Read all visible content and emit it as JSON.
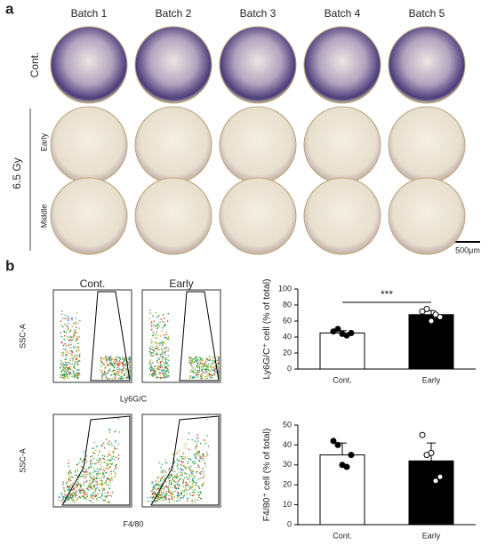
{
  "figure": {
    "panel_a": {
      "label": "a",
      "batches": [
        "Batch 1",
        "Batch 2",
        "Batch 3",
        "Batch 4",
        "Batch 5"
      ],
      "group": "6.5 Gy",
      "rows": [
        "Cont.",
        "Early",
        "Middle"
      ],
      "scale_bar": "500μm"
    },
    "panel_b": {
      "label": "b",
      "flow_titles": [
        "Cont.",
        "Early"
      ],
      "flow_y_label": "SSC-A",
      "flow_x_labels": [
        "Ly6G/C",
        "F4/80"
      ]
    }
  },
  "chart_data": [
    {
      "type": "bar",
      "y_label": "Ly6G/C⁺ cell (% of total)",
      "categories": [
        "Cont.",
        "Early"
      ],
      "values": [
        45,
        68
      ],
      "errors": [
        3,
        5
      ],
      "colors": [
        "#ffffff",
        "#000000"
      ],
      "points": [
        [
          47,
          50,
          44,
          42,
          45
        ],
        [
          72,
          75,
          60,
          68,
          65
        ]
      ],
      "ylim": [
        0,
        100
      ],
      "yticks": [
        0,
        20,
        40,
        60,
        80,
        100
      ],
      "significance": "***"
    },
    {
      "type": "bar",
      "y_label": "F4/80⁺ cell (% of total)",
      "categories": [
        "Cont.",
        "Early"
      ],
      "values": [
        35,
        32
      ],
      "errors": [
        6,
        9
      ],
      "colors": [
        "#ffffff",
        "#000000"
      ],
      "points": [
        [
          42,
          40,
          30,
          29,
          35
        ],
        [
          45,
          35,
          36,
          22,
          24
        ]
      ],
      "ylim": [
        0,
        50
      ],
      "yticks": [
        0,
        10,
        20,
        30,
        40,
        50
      ]
    }
  ]
}
